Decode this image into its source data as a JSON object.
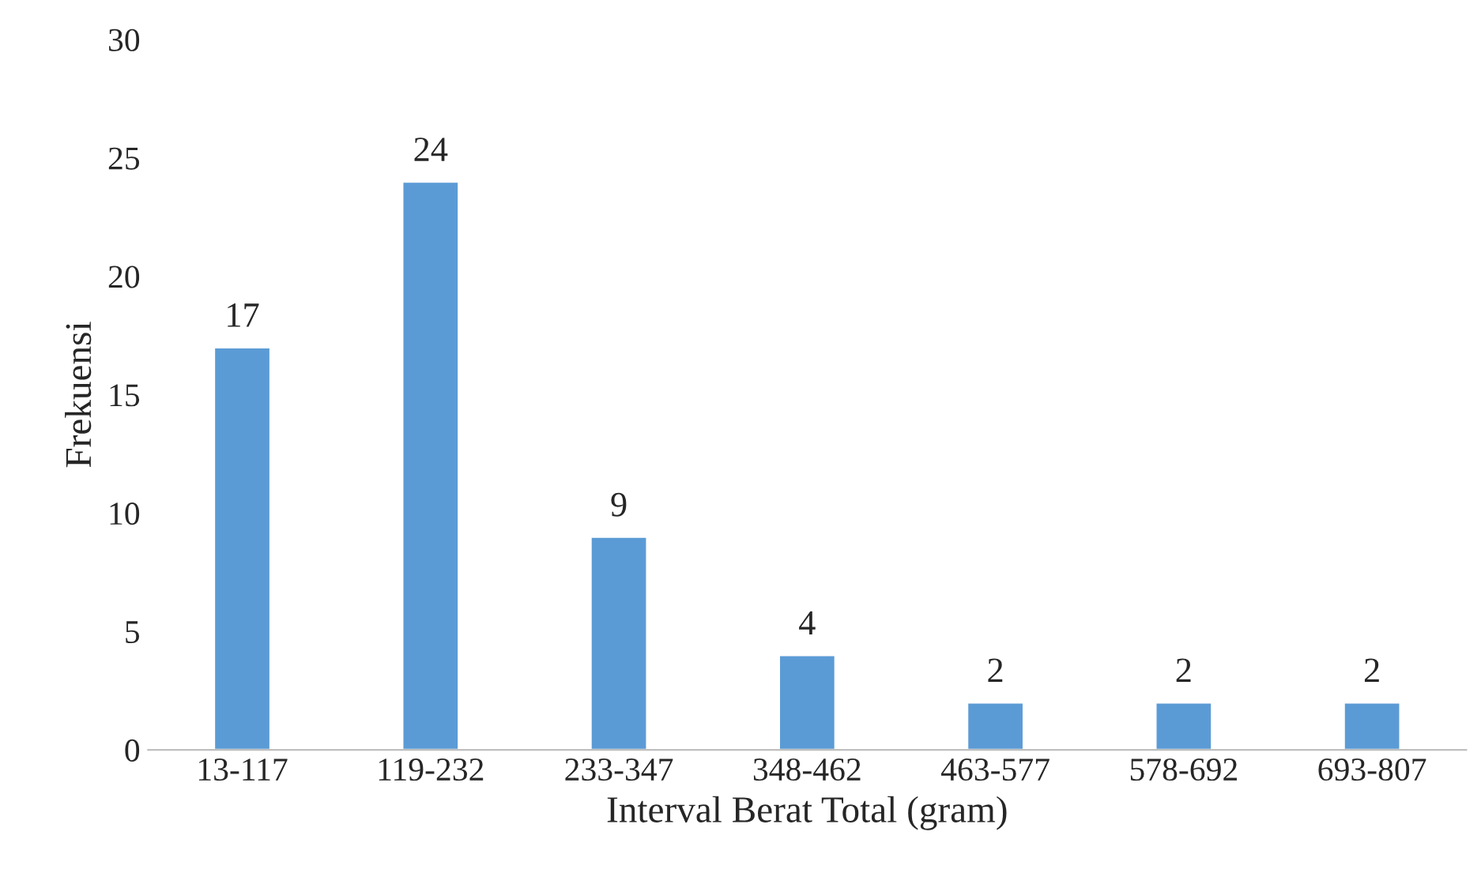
{
  "chart_data": {
    "type": "bar",
    "xlabel": "Interval Berat Total (gram)",
    "ylabel": "Frekuensi",
    "categories": [
      "13-117",
      "119-232",
      "233-347",
      "348-462",
      "463-577",
      "578-692",
      "693-807"
    ],
    "values": [
      17,
      24,
      9,
      4,
      2,
      2,
      2
    ],
    "color": "#5b9bd5",
    "ylim": [
      0,
      30
    ],
    "yticks": [
      0,
      5,
      10,
      15,
      20,
      25,
      30
    ],
    "grid": false,
    "data_labels": true
  }
}
